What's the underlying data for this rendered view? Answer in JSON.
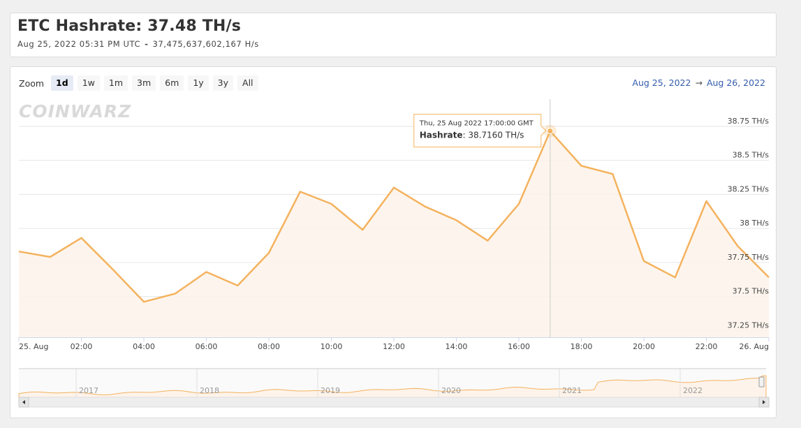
{
  "header": {
    "title": "ETC Hashrate: 37.48 TH/s",
    "timestamp": "Aug 25, 2022 05:31 PM UTC",
    "separator": "-",
    "raw_hashrate": "37,475,637,602,167 H/s"
  },
  "zoom": {
    "label": "Zoom",
    "buttons": [
      "1d",
      "1w",
      "1m",
      "3m",
      "6m",
      "1y",
      "3y",
      "All"
    ],
    "active": "1d"
  },
  "range": {
    "from": "Aug 25, 2022",
    "arrow": "→",
    "to": "Aug 26, 2022"
  },
  "watermark": "COINWARZ",
  "tooltip": {
    "date": "Thu, 25 Aug 2022 17:00:00 GMT",
    "series_label": "Hashrate",
    "value": "38.7160 TH/s"
  },
  "colors": {
    "line": "#f4b25e",
    "fill": "#fdf3ea",
    "grid": "#e6e6e6",
    "range_text": "#335cad"
  },
  "chart_data": {
    "type": "area",
    "x": [
      "00:00",
      "01:00",
      "02:00",
      "03:00",
      "04:00",
      "05:00",
      "06:00",
      "07:00",
      "08:00",
      "09:00",
      "10:00",
      "11:00",
      "12:00",
      "13:00",
      "14:00",
      "15:00",
      "16:00",
      "17:00",
      "18:00",
      "19:00",
      "20:00",
      "21:00",
      "22:00",
      "23:00",
      "24:00"
    ],
    "values": [
      37.83,
      37.79,
      37.93,
      37.7,
      37.46,
      37.52,
      37.68,
      37.58,
      37.82,
      38.27,
      38.18,
      37.99,
      38.3,
      38.16,
      38.06,
      37.91,
      38.18,
      38.716,
      38.46,
      38.4,
      37.76,
      37.64,
      38.2,
      37.87,
      37.64
    ],
    "series": [
      {
        "name": "Hashrate"
      }
    ],
    "ylim": [
      37.2,
      38.95
    ],
    "yticks": [
      37.25,
      37.5,
      37.75,
      38,
      38.25,
      38.5,
      38.75
    ],
    "ytick_labels": [
      "37.25 TH/s",
      "37.5 TH/s",
      "37.75 TH/s",
      "38 TH/s",
      "38.25 TH/s",
      "38.5 TH/s",
      "38.75 TH/s"
    ],
    "xtick_labels": [
      "25. Aug",
      "02:00",
      "04:00",
      "06:00",
      "08:00",
      "10:00",
      "12:00",
      "14:00",
      "16:00",
      "18:00",
      "20:00",
      "22:00",
      "26. Aug"
    ],
    "xtick_hours": [
      0,
      2,
      4,
      6,
      8,
      10,
      12,
      14,
      16,
      18,
      20,
      22,
      24
    ],
    "highlight_hour": 17,
    "grid": true,
    "navigator": {
      "years": [
        "2017",
        "2018",
        "2019",
        "2020",
        "2021",
        "2022"
      ]
    }
  }
}
